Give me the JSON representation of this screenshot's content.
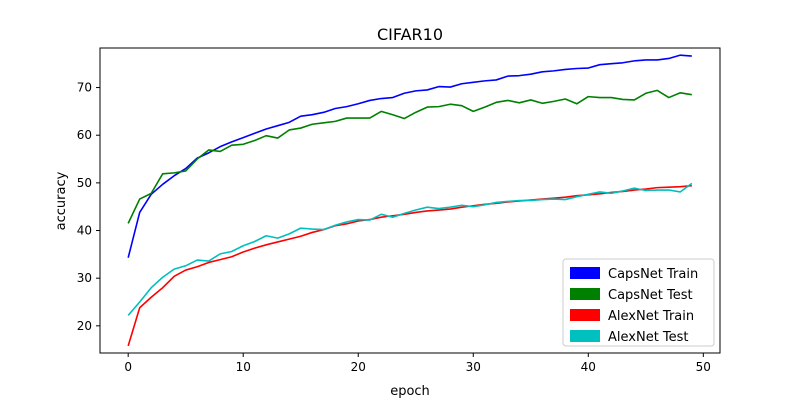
{
  "chart_data": {
    "type": "line",
    "title": "CIFAR10",
    "xlabel": "epoch",
    "ylabel": "accuracy",
    "xlim": [
      -2.45,
      51.45
    ],
    "ylim": [
      14.3,
      78.3
    ],
    "xticks": [
      0,
      10,
      20,
      30,
      40,
      50
    ],
    "yticks": [
      20,
      30,
      40,
      50,
      60,
      70
    ],
    "legend_position": "bottom-right",
    "grid": false,
    "x": [
      0,
      1,
      2,
      3,
      4,
      5,
      6,
      7,
      8,
      9,
      10,
      11,
      12,
      13,
      14,
      15,
      16,
      17,
      18,
      19,
      20,
      21,
      22,
      23,
      24,
      25,
      26,
      27,
      28,
      29,
      30,
      31,
      32,
      33,
      34,
      35,
      36,
      37,
      38,
      39,
      40,
      41,
      42,
      43,
      44,
      45,
      46,
      47,
      48,
      49
    ],
    "series": [
      {
        "name": "CapsNet Train",
        "color": "#0000ff",
        "values": [
          34.3,
          43.8,
          47.6,
          49.7,
          51.5,
          53.0,
          55.2,
          56.3,
          57.6,
          58.6,
          59.5,
          60.4,
          61.3,
          62.0,
          62.7,
          64.0,
          64.3,
          64.8,
          65.6,
          66.0,
          66.6,
          67.3,
          67.7,
          67.9,
          68.8,
          69.3,
          69.5,
          70.2,
          70.1,
          70.8,
          71.1,
          71.4,
          71.6,
          72.4,
          72.5,
          72.8,
          73.3,
          73.5,
          73.8,
          74.0,
          74.1,
          74.8,
          75.0,
          75.2,
          75.6,
          75.8,
          75.8,
          76.1,
          76.8,
          76.6
        ]
      },
      {
        "name": "CapsNet Test",
        "color": "#008000",
        "values": [
          41.5,
          46.6,
          47.8,
          51.9,
          52.1,
          52.5,
          55.0,
          56.9,
          56.6,
          57.9,
          58.1,
          58.9,
          59.9,
          59.4,
          61.1,
          61.5,
          62.3,
          62.6,
          62.9,
          63.6,
          63.6,
          63.6,
          65.0,
          64.3,
          63.5,
          64.8,
          65.9,
          66.0,
          66.5,
          66.2,
          65.0,
          65.9,
          66.9,
          67.3,
          66.8,
          67.4,
          66.7,
          67.1,
          67.6,
          66.6,
          68.1,
          67.9,
          67.9,
          67.5,
          67.4,
          68.8,
          69.4,
          67.9,
          68.9,
          68.5
        ]
      },
      {
        "name": "AlexNet Train",
        "color": "#ff0000",
        "values": [
          15.8,
          23.8,
          26.0,
          28.0,
          30.4,
          31.7,
          32.4,
          33.3,
          33.9,
          34.5,
          35.5,
          36.3,
          37.0,
          37.6,
          38.2,
          38.8,
          39.6,
          40.2,
          41.0,
          41.4,
          42.0,
          42.3,
          42.8,
          43.1,
          43.4,
          43.8,
          44.1,
          44.3,
          44.5,
          44.9,
          45.2,
          45.5,
          45.7,
          46.0,
          46.2,
          46.4,
          46.6,
          46.8,
          47.0,
          47.3,
          47.5,
          47.7,
          48.0,
          48.2,
          48.5,
          48.7,
          49.0,
          49.1,
          49.2,
          49.4
        ]
      },
      {
        "name": "AlexNet Test",
        "color": "#00bfbf",
        "values": [
          22.2,
          25.0,
          28.0,
          30.2,
          31.9,
          32.6,
          33.8,
          33.6,
          35.1,
          35.6,
          36.8,
          37.7,
          38.9,
          38.4,
          39.3,
          40.5,
          40.3,
          40.2,
          41.1,
          41.8,
          42.3,
          42.2,
          43.4,
          42.8,
          43.6,
          44.3,
          44.9,
          44.6,
          44.9,
          45.3,
          45.0,
          45.4,
          45.9,
          46.1,
          46.3,
          46.3,
          46.5,
          46.6,
          46.5,
          47.1,
          47.6,
          48.1,
          47.8,
          48.3,
          48.9,
          48.4,
          48.5,
          48.5,
          48.1,
          49.9
        ]
      }
    ]
  }
}
